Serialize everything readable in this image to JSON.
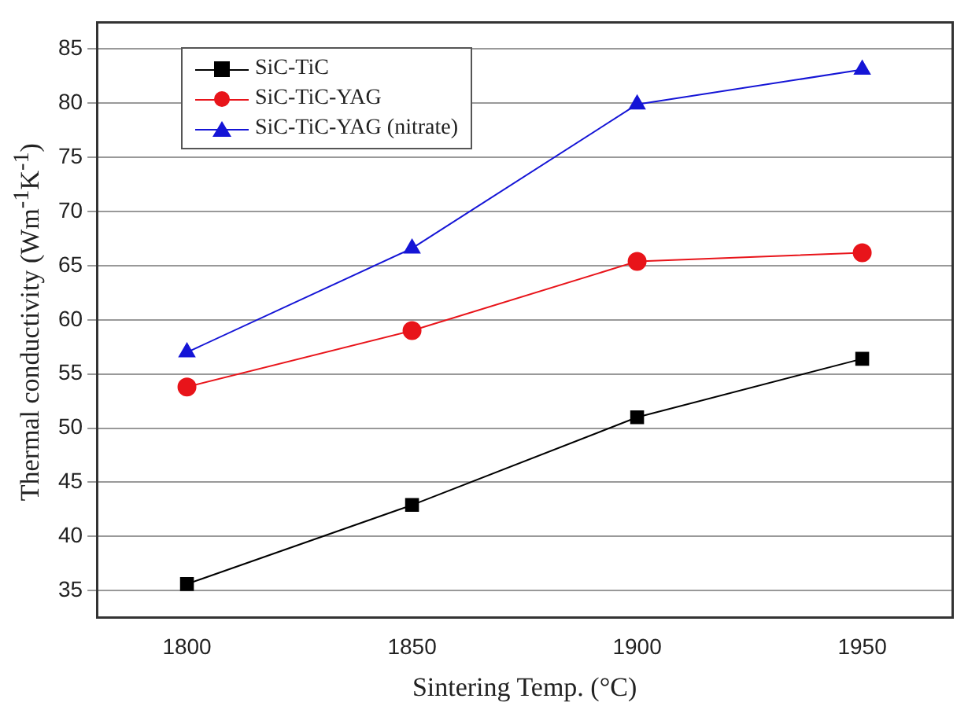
{
  "chart_data": {
    "type": "line",
    "xlabel": "Sintering Temp. (°C)",
    "ylabel": "Thermal conductivity (Wm$^{-1}$K$^{-1}$)",
    "x": [
      1800,
      1850,
      1900,
      1950
    ],
    "series": [
      {
        "name": "SiC-TiC",
        "color": "#000000",
        "marker": "square",
        "values": [
          35.6,
          42.9,
          51.0,
          56.4
        ]
      },
      {
        "name": "SiC-TiC-YAG",
        "color": "#e8141a",
        "marker": "circle",
        "values": [
          53.8,
          59.0,
          65.4,
          66.2
        ]
      },
      {
        "name": "SiC-TiC-YAG (nitrate)",
        "color": "#1515d6",
        "marker": "triangle",
        "values": [
          57.0,
          66.6,
          79.9,
          83.1
        ]
      }
    ],
    "xlim": [
      1780,
      1970
    ],
    "xticks": [
      1800,
      1850,
      1900,
      1950
    ],
    "ylim": [
      32.5,
      87.5
    ],
    "yticks": [
      35,
      40,
      45,
      50,
      55,
      60,
      65,
      70,
      75,
      80,
      85
    ],
    "grid": "y",
    "legend": "top left",
    "line_style": "solid"
  }
}
